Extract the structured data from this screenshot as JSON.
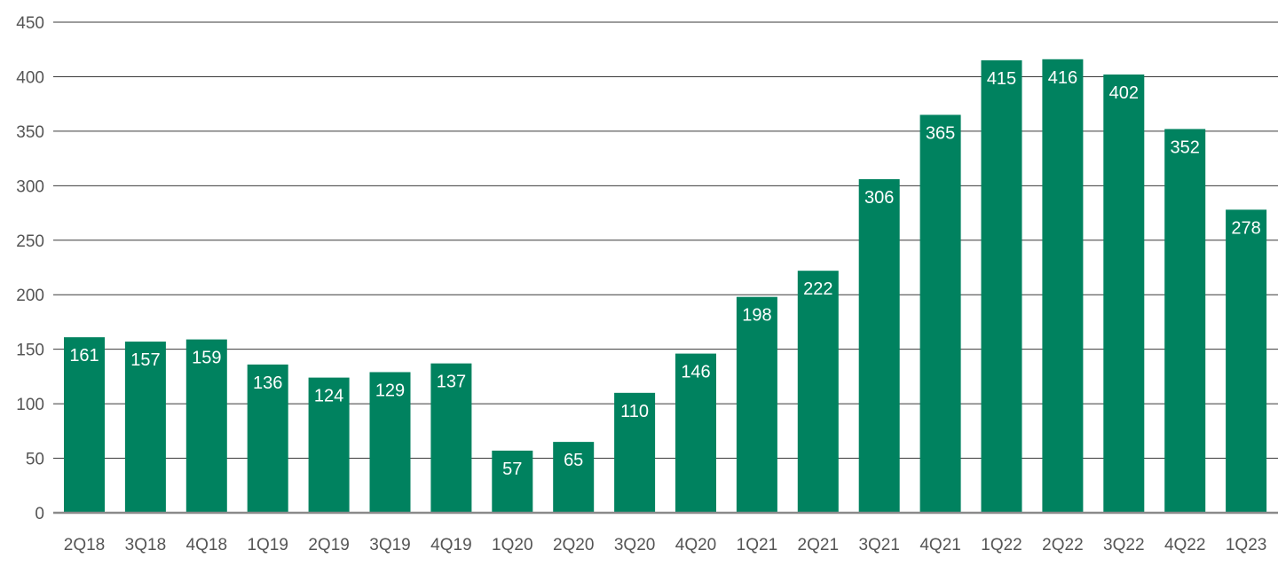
{
  "chart_data": {
    "type": "bar",
    "categories": [
      "2Q18",
      "3Q18",
      "4Q18",
      "1Q19",
      "2Q19",
      "3Q19",
      "4Q19",
      "1Q20",
      "2Q20",
      "3Q20",
      "4Q20",
      "1Q21",
      "2Q21",
      "3Q21",
      "4Q21",
      "1Q22",
      "2Q22",
      "3Q22",
      "4Q22",
      "1Q23"
    ],
    "values": [
      161,
      157,
      159,
      136,
      124,
      129,
      137,
      57,
      65,
      110,
      146,
      198,
      222,
      306,
      365,
      415,
      416,
      402,
      352,
      278
    ],
    "ylim": [
      0,
      450
    ],
    "yticks": [
      0,
      50,
      100,
      150,
      200,
      250,
      300,
      350,
      400,
      450
    ],
    "grid": true,
    "data_labels": true,
    "colors": {
      "bar": "#00825f",
      "label": "#ffffff"
    }
  }
}
